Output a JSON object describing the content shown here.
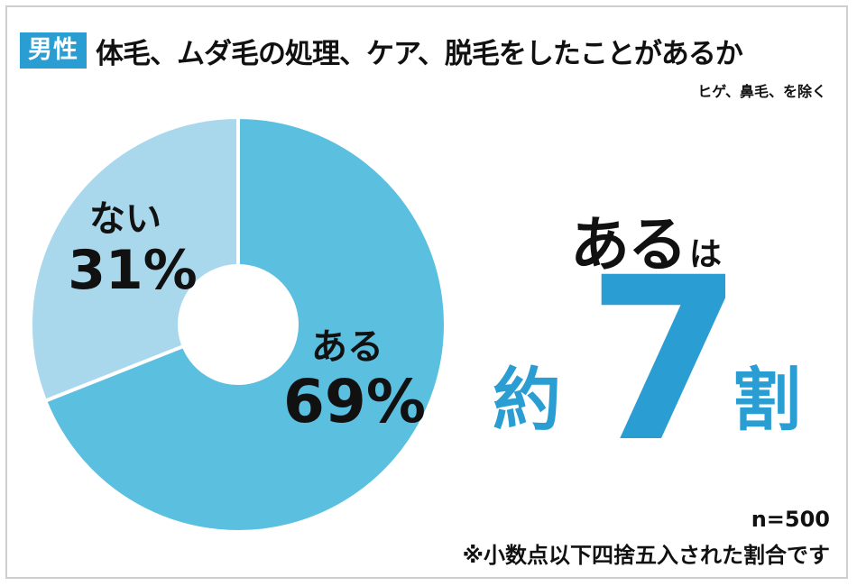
{
  "header": {
    "badge": "男性",
    "title": "体毛、ムダ毛の処理、ケア、脱毛をしたことがあるか",
    "subtitle": "ヒゲ、鼻毛、を除く"
  },
  "chart_data": {
    "type": "pie",
    "slices": [
      {
        "label": "ある",
        "value": 69,
        "value_text": "69%",
        "color": "#5bbfe0"
      },
      {
        "label": "ない",
        "value": 31,
        "value_text": "31%",
        "color": "#a9d8ec"
      }
    ]
  },
  "headline": {
    "main": "ある",
    "particle": "は",
    "approx": "約",
    "number": "7",
    "unit": "割"
  },
  "footer": {
    "sample": "n=500",
    "note": "※小数点以下四捨五入された割合です"
  }
}
